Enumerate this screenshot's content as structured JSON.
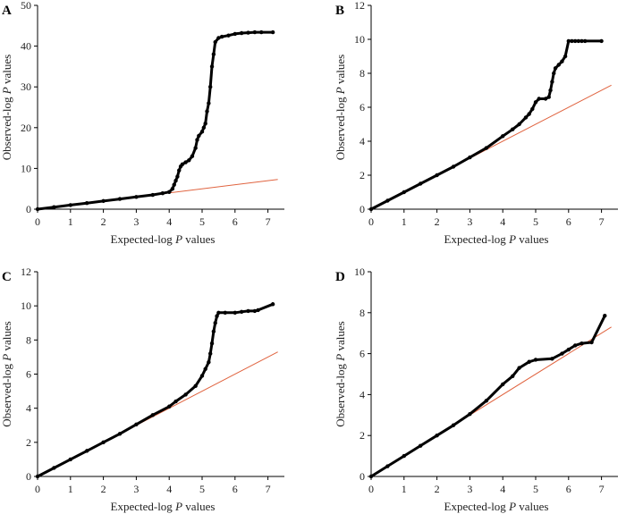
{
  "figure": {
    "xlabel_prefix": "Expected-log ",
    "xlabel_italic": "P",
    "xlabel_suffix": " values",
    "ylabel_prefix": "Observed-log ",
    "ylabel_italic": "P",
    "ylabel_suffix": " values"
  },
  "colors": {
    "points": "#000000",
    "reference_line": "#e0633f",
    "axis": "#000000"
  },
  "chart_data": [
    {
      "type": "scatter",
      "panel_label": "A",
      "xlim": [
        0,
        7.5
      ],
      "ylim": [
        0,
        50
      ],
      "x_ticks": [
        0,
        1,
        2,
        3,
        4,
        5,
        6,
        7
      ],
      "y_ticks": [
        0,
        10,
        20,
        30,
        40,
        50
      ],
      "grid": false,
      "reference_line": {
        "x": [
          0,
          7.3
        ],
        "y": [
          0,
          7.3
        ]
      },
      "points": [
        [
          0,
          0
        ],
        [
          0.5,
          0.5
        ],
        [
          1,
          1
        ],
        [
          1.5,
          1.5
        ],
        [
          2,
          2
        ],
        [
          2.5,
          2.5
        ],
        [
          3,
          3
        ],
        [
          3.5,
          3.5
        ],
        [
          3.8,
          3.9
        ],
        [
          4.0,
          4.2
        ],
        [
          4.1,
          5.0
        ],
        [
          4.15,
          6.0
        ],
        [
          4.2,
          7.0
        ],
        [
          4.25,
          8.0
        ],
        [
          4.3,
          9.5
        ],
        [
          4.35,
          10.5
        ],
        [
          4.4,
          11.0
        ],
        [
          4.5,
          11.5
        ],
        [
          4.6,
          12.0
        ],
        [
          4.7,
          13.0
        ],
        [
          4.8,
          15.0
        ],
        [
          4.85,
          17.0
        ],
        [
          4.9,
          18.0
        ],
        [
          5.0,
          19.0
        ],
        [
          5.05,
          20.0
        ],
        [
          5.1,
          21.0
        ],
        [
          5.15,
          24.0
        ],
        [
          5.2,
          26.0
        ],
        [
          5.25,
          30.0
        ],
        [
          5.3,
          35.0
        ],
        [
          5.35,
          38.0
        ],
        [
          5.4,
          41.0
        ],
        [
          5.5,
          42.0
        ],
        [
          5.6,
          42.3
        ],
        [
          5.8,
          42.6
        ],
        [
          6.0,
          43.0
        ],
        [
          6.2,
          43.2
        ],
        [
          6.4,
          43.3
        ],
        [
          6.6,
          43.4
        ],
        [
          6.8,
          43.4
        ],
        [
          7.15,
          43.4
        ]
      ]
    },
    {
      "type": "scatter",
      "panel_label": "B",
      "xlim": [
        0,
        7.5
      ],
      "ylim": [
        0,
        12
      ],
      "x_ticks": [
        0,
        1,
        2,
        3,
        4,
        5,
        6,
        7
      ],
      "y_ticks": [
        0,
        2,
        4,
        6,
        8,
        10,
        12
      ],
      "grid": false,
      "reference_line": {
        "x": [
          0,
          7.3
        ],
        "y": [
          0,
          7.3
        ]
      },
      "points": [
        [
          0,
          0
        ],
        [
          0.5,
          0.5
        ],
        [
          1,
          1
        ],
        [
          1.5,
          1.5
        ],
        [
          2,
          2
        ],
        [
          2.5,
          2.5
        ],
        [
          3,
          3.05
        ],
        [
          3.5,
          3.6
        ],
        [
          4,
          4.3
        ],
        [
          4.3,
          4.7
        ],
        [
          4.5,
          5.0
        ],
        [
          4.7,
          5.4
        ],
        [
          4.8,
          5.6
        ],
        [
          4.9,
          5.9
        ],
        [
          5.0,
          6.3
        ],
        [
          5.1,
          6.5
        ],
        [
          5.3,
          6.5
        ],
        [
          5.4,
          6.6
        ],
        [
          5.45,
          7.0
        ],
        [
          5.5,
          7.5
        ],
        [
          5.55,
          8.0
        ],
        [
          5.6,
          8.3
        ],
        [
          5.7,
          8.5
        ],
        [
          5.8,
          8.7
        ],
        [
          5.9,
          9.0
        ],
        [
          6.0,
          9.9
        ],
        [
          6.1,
          9.9
        ],
        [
          6.2,
          9.9
        ],
        [
          6.3,
          9.9
        ],
        [
          6.4,
          9.9
        ],
        [
          6.5,
          9.9
        ],
        [
          7.0,
          9.9
        ]
      ]
    },
    {
      "type": "scatter",
      "panel_label": "C",
      "xlim": [
        0,
        7.5
      ],
      "ylim": [
        0,
        12
      ],
      "x_ticks": [
        0,
        1,
        2,
        3,
        4,
        5,
        6,
        7
      ],
      "y_ticks": [
        0,
        2,
        4,
        6,
        8,
        10,
        12
      ],
      "grid": false,
      "reference_line": {
        "x": [
          0,
          7.3
        ],
        "y": [
          0,
          7.3
        ]
      },
      "points": [
        [
          0,
          0
        ],
        [
          0.5,
          0.5
        ],
        [
          1,
          1
        ],
        [
          1.5,
          1.5
        ],
        [
          2,
          2
        ],
        [
          2.5,
          2.5
        ],
        [
          3,
          3.05
        ],
        [
          3.5,
          3.6
        ],
        [
          4,
          4.1
        ],
        [
          4.2,
          4.4
        ],
        [
          4.5,
          4.8
        ],
        [
          4.8,
          5.3
        ],
        [
          5.0,
          5.9
        ],
        [
          5.1,
          6.3
        ],
        [
          5.2,
          6.7
        ],
        [
          5.25,
          7.2
        ],
        [
          5.3,
          7.8
        ],
        [
          5.35,
          8.5
        ],
        [
          5.4,
          9.0
        ],
        [
          5.45,
          9.4
        ],
        [
          5.5,
          9.6
        ],
        [
          5.7,
          9.6
        ],
        [
          6.0,
          9.6
        ],
        [
          6.2,
          9.65
        ],
        [
          6.4,
          9.7
        ],
        [
          6.6,
          9.7
        ],
        [
          6.7,
          9.75
        ],
        [
          7.15,
          10.1
        ]
      ]
    },
    {
      "type": "scatter",
      "panel_label": "D",
      "xlim": [
        0,
        7.5
      ],
      "ylim": [
        0,
        10
      ],
      "x_ticks": [
        0,
        1,
        2,
        3,
        4,
        5,
        6,
        7
      ],
      "y_ticks": [
        0,
        2,
        4,
        6,
        8,
        10
      ],
      "grid": false,
      "reference_line": {
        "x": [
          0,
          7.3
        ],
        "y": [
          0,
          7.3
        ]
      },
      "points": [
        [
          0,
          0
        ],
        [
          0.5,
          0.5
        ],
        [
          1,
          1
        ],
        [
          1.5,
          1.5
        ],
        [
          2,
          2
        ],
        [
          2.5,
          2.5
        ],
        [
          3,
          3.05
        ],
        [
          3.5,
          3.7
        ],
        [
          4,
          4.5
        ],
        [
          4.3,
          4.9
        ],
        [
          4.5,
          5.3
        ],
        [
          4.8,
          5.6
        ],
        [
          5.0,
          5.7
        ],
        [
          5.5,
          5.75
        ],
        [
          5.8,
          6.0
        ],
        [
          6.0,
          6.2
        ],
        [
          6.2,
          6.4
        ],
        [
          6.4,
          6.5
        ],
        [
          6.7,
          6.55
        ],
        [
          7.1,
          7.85
        ]
      ]
    }
  ]
}
